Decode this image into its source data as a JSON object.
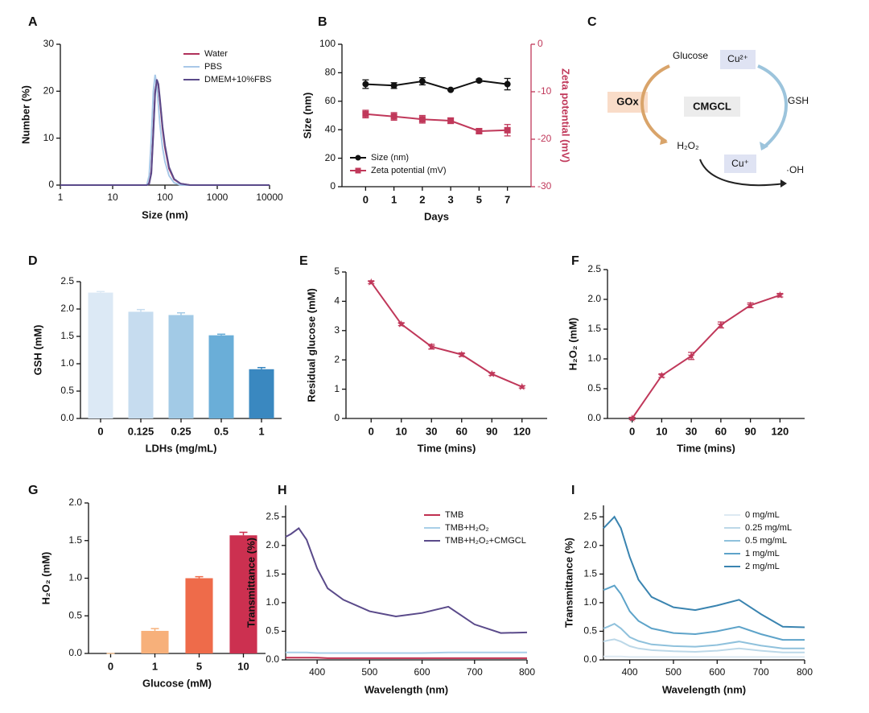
{
  "chart_data": [
    {
      "type": "line",
      "panel": "A",
      "xlabel": "Size (nm)",
      "ylabel": "Number (%)",
      "xlog": true,
      "x": [
        1,
        30,
        45,
        50,
        55,
        60,
        65,
        70,
        75,
        80,
        90,
        100,
        120,
        150,
        200,
        300,
        1000,
        10000
      ],
      "xlim": [
        1,
        10000
      ],
      "xticks": [
        1,
        10,
        100,
        1000,
        10000
      ],
      "ylim": [
        0,
        30
      ],
      "yticks": [
        0,
        10,
        20,
        30
      ],
      "legend": "upper right",
      "series": [
        {
          "name": "Water",
          "color": "#b0305a",
          "values": [
            0,
            0,
            0,
            0.5,
            3,
            12,
            20,
            22,
            21,
            18,
            12,
            8,
            3.5,
            1.2,
            0.3,
            0,
            0,
            0
          ]
        },
        {
          "name": "PBS",
          "color": "#a8c8e8",
          "values": [
            0,
            0,
            0,
            2,
            10,
            20,
            23.5,
            21,
            17,
            13,
            8,
            5,
            2,
            0.5,
            0,
            0,
            0,
            0
          ]
        },
        {
          "name": "DMEM+10%FBS",
          "color": "#5a4a8a",
          "values": [
            0,
            0,
            0,
            0.3,
            2.5,
            11,
            19.5,
            22.5,
            21.5,
            18.5,
            12.5,
            8.5,
            3.8,
            1.3,
            0.3,
            0,
            0,
            0
          ]
        }
      ]
    },
    {
      "type": "line",
      "panel": "B",
      "xlabel": "Days",
      "ylabel": "Size (nm)",
      "y2label": "Zeta potential (mV)",
      "categories": [
        "0",
        "1",
        "2",
        "3",
        "5",
        "7"
      ],
      "ylim": [
        0,
        100
      ],
      "yticks": [
        0,
        20,
        40,
        60,
        80,
        100
      ],
      "y2lim": [
        -30,
        0
      ],
      "y2ticks": [
        0,
        -10,
        -20,
        -30
      ],
      "legend": "lower left",
      "series": [
        {
          "name": "Size (nm)",
          "color": "#111111",
          "marker": "circle",
          "values": [
            72,
            71,
            74,
            68,
            74.5,
            72
          ],
          "errors": [
            3,
            2,
            2.5,
            0.5,
            1,
            4
          ]
        },
        {
          "name": "Zeta potential (mV)",
          "color": "#c0385a",
          "marker": "square",
          "axis": "y2",
          "values": [
            -14.7,
            -15.2,
            -15.8,
            -16.1,
            -18.3,
            -18.1
          ],
          "errors": [
            0.8,
            0.8,
            0.8,
            0.6,
            0.5,
            1.2
          ]
        }
      ]
    },
    {
      "type": "bar",
      "panel": "D",
      "xlabel": "LDHs (mg/mL)",
      "ylabel": "GSH (mM)",
      "categories": [
        "0",
        "0.125",
        "0.25",
        "0.5",
        "1"
      ],
      "values": [
        2.3,
        1.95,
        1.89,
        1.52,
        0.9
      ],
      "errors": [
        0.02,
        0.04,
        0.04,
        0.02,
        0.03
      ],
      "colors": [
        "#dce9f5",
        "#c6dcef",
        "#a2cae6",
        "#6aaed8",
        "#3a88c0"
      ],
      "ylim": [
        0,
        2.5
      ],
      "yticks": [
        {
          "value": 0,
          "label": "0.0"
        },
        0.5,
        {
          "value": 1,
          "label": "1.0"
        },
        1.5,
        {
          "value": 2,
          "label": "2.0"
        },
        2.5
      ]
    },
    {
      "type": "line",
      "panel": "E",
      "xlabel": "Time (mins)",
      "ylabel": "Residual glucose (mM)",
      "categories": [
        "0",
        "10",
        "30",
        "60",
        "90",
        "120"
      ],
      "ylim": [
        0,
        5
      ],
      "yticks": [
        0,
        1,
        2,
        3,
        4,
        5
      ],
      "series": [
        {
          "color": "#c0385a",
          "marker": "star",
          "values": [
            4.65,
            3.22,
            2.45,
            2.18,
            1.52,
            1.08
          ],
          "errors": [
            0.05,
            0.05,
            0.08,
            0.06,
            0.05,
            0.04
          ]
        }
      ]
    },
    {
      "type": "line",
      "panel": "F",
      "xlabel": "Time (mins)",
      "ylabel": "H₂O₂ (mM)",
      "categories": [
        "0",
        "10",
        "30",
        "60",
        "90",
        "120"
      ],
      "ylim": [
        0,
        2.5
      ],
      "yticks": [
        {
          "value": 0,
          "label": "0.0"
        },
        0.5,
        {
          "value": 1,
          "label": "1.0"
        },
        1.5,
        {
          "value": 2,
          "label": "2.0"
        },
        2.5
      ],
      "series": [
        {
          "color": "#c0385a",
          "marker": "star",
          "values": [
            0,
            0.72,
            1.05,
            1.57,
            1.9,
            2.07
          ],
          "errors": [
            0.02,
            0.03,
            0.06,
            0.05,
            0.04,
            0.03
          ]
        }
      ]
    },
    {
      "type": "bar",
      "panel": "G",
      "xlabel": "Glucose (mM)",
      "ylabel": "H₂O₂ (mM)",
      "categories": [
        "0",
        "1",
        "5",
        "10"
      ],
      "values": [
        0,
        0.3,
        1.0,
        1.57
      ],
      "errors": [
        0,
        0.03,
        0.02,
        0.04
      ],
      "colors": [
        "#f8c89a",
        "#f7b07a",
        "#ee6b4a",
        "#cc3050"
      ],
      "ylim": [
        0,
        2.0
      ],
      "yticks": [
        {
          "value": 0,
          "label": "0.0"
        },
        0.5,
        {
          "value": 1,
          "label": "1.0"
        },
        1.5,
        {
          "value": 2,
          "label": "2.0"
        }
      ]
    },
    {
      "type": "line",
      "panel": "H",
      "xlabel": "Wavelength (nm)",
      "ylabel": "Transmittance (%)",
      "x": [
        340,
        350,
        365,
        380,
        400,
        420,
        450,
        500,
        550,
        600,
        650,
        700,
        750,
        800
      ],
      "xlim": [
        340,
        800
      ],
      "xticks": [
        400,
        500,
        600,
        700,
        800
      ],
      "ylim": [
        0,
        2.7
      ],
      "yticks": [
        {
          "value": 0,
          "label": "0.0"
        },
        0.5,
        {
          "value": 1,
          "label": "1.0"
        },
        1.5,
        {
          "value": 2,
          "label": "2.0"
        },
        2.5
      ],
      "legend": "upper right",
      "series": [
        {
          "name": "TMB",
          "color": "#c03050",
          "values": [
            0.04,
            0.04,
            0.04,
            0.04,
            0.04,
            0.03,
            0.03,
            0.03,
            0.03,
            0.03,
            0.03,
            0.03,
            0.03,
            0.03
          ]
        },
        {
          "name": "TMB+H₂O₂",
          "color": "#a8cfe8",
          "values": [
            0.13,
            0.13,
            0.13,
            0.13,
            0.12,
            0.12,
            0.12,
            0.12,
            0.12,
            0.12,
            0.13,
            0.13,
            0.13,
            0.13
          ]
        },
        {
          "name": "TMB+H₂O₂+CMGCL",
          "color": "#5a4a8a",
          "values": [
            2.15,
            2.2,
            2.3,
            2.1,
            1.6,
            1.25,
            1.05,
            0.85,
            0.76,
            0.82,
            0.93,
            0.62,
            0.47,
            0.48
          ]
        }
      ]
    },
    {
      "type": "line",
      "panel": "I",
      "xlabel": "Wavelength (nm)",
      "ylabel": "Transmittance (%)",
      "x": [
        340,
        350,
        365,
        380,
        400,
        420,
        450,
        500,
        550,
        600,
        650,
        700,
        750,
        800
      ],
      "xlim": [
        340,
        800
      ],
      "xticks": [
        400,
        500,
        600,
        700,
        800
      ],
      "ylim": [
        0,
        2.7
      ],
      "yticks": [
        {
          "value": 0,
          "label": "0.0"
        },
        0.5,
        {
          "value": 1,
          "label": "1.0"
        },
        1.5,
        {
          "value": 2,
          "label": "2.0"
        },
        2.5
      ],
      "legend": "upper right",
      "series": [
        {
          "name": "0 mg/mL",
          "color": "#dde9f2",
          "values": [
            0.06,
            0.06,
            0.06,
            0.06,
            0.05,
            0.05,
            0.05,
            0.05,
            0.05,
            0.05,
            0.05,
            0.05,
            0.05,
            0.05
          ]
        },
        {
          "name": "0.25 mg/mL",
          "color": "#bcd8e8",
          "values": [
            0.32,
            0.34,
            0.36,
            0.32,
            0.24,
            0.2,
            0.17,
            0.15,
            0.14,
            0.16,
            0.2,
            0.16,
            0.13,
            0.13
          ]
        },
        {
          "name": "0.5 mg/mL",
          "color": "#8fc1dc",
          "values": [
            0.55,
            0.58,
            0.63,
            0.55,
            0.4,
            0.33,
            0.27,
            0.24,
            0.23,
            0.26,
            0.32,
            0.25,
            0.2,
            0.2
          ]
        },
        {
          "name": "1 mg/mL",
          "color": "#5da3c9",
          "values": [
            1.22,
            1.25,
            1.3,
            1.15,
            0.85,
            0.68,
            0.55,
            0.47,
            0.45,
            0.5,
            0.58,
            0.45,
            0.35,
            0.35
          ]
        },
        {
          "name": "2 mg/mL",
          "color": "#3a84b0",
          "values": [
            2.3,
            2.38,
            2.5,
            2.3,
            1.8,
            1.4,
            1.1,
            0.92,
            0.87,
            0.95,
            1.05,
            0.8,
            0.58,
            0.57
          ]
        }
      ]
    }
  ],
  "diagram": {
    "panel": "C",
    "nodes": [
      {
        "label": "Glucose"
      },
      {
        "label": "Cu²⁺"
      },
      {
        "label": "GOx"
      },
      {
        "label": "CMGCL"
      },
      {
        "label": "GSH"
      },
      {
        "label": "H₂O₂"
      },
      {
        "label": "Cu⁺"
      },
      {
        "label": "·OH"
      }
    ]
  }
}
